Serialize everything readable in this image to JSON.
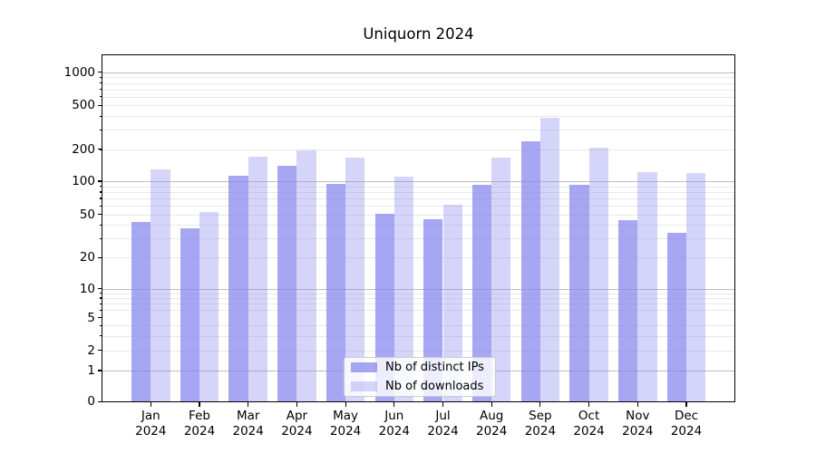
{
  "chart_data": {
    "type": "bar",
    "title": "Uniquorn 2024",
    "categories": [
      "Jan",
      "Feb",
      "Mar",
      "Apr",
      "May",
      "Jun",
      "Jul",
      "Aug",
      "Sep",
      "Oct",
      "Nov",
      "Dec"
    ],
    "category_year": "2024",
    "series": [
      {
        "name": "Nb of distinct IPs",
        "color": "rgba(136,136,238,0.75)",
        "values": [
          43,
          37,
          113,
          140,
          94,
          51,
          45,
          93,
          235,
          93,
          44,
          34
        ]
      },
      {
        "name": "Nb of downloads",
        "color": "rgba(136,136,238,0.35)",
        "values": [
          130,
          53,
          170,
          195,
          167,
          110,
          61,
          166,
          385,
          207,
          122,
          120
        ]
      }
    ],
    "xlabel": "",
    "ylabel": "",
    "yscale": "symlog",
    "yticks": [
      0,
      1,
      2,
      5,
      10,
      20,
      50,
      100,
      200,
      500,
      1000
    ],
    "ylim": [
      0,
      1400
    ],
    "grid": "horizontal major+minor",
    "legend_position": "lower center"
  },
  "colors": {
    "bar_base": "#8888ee",
    "major_grid": "#bdbdbd",
    "minor_grid": "#e8e8e8",
    "axis_frame": "#000000"
  }
}
